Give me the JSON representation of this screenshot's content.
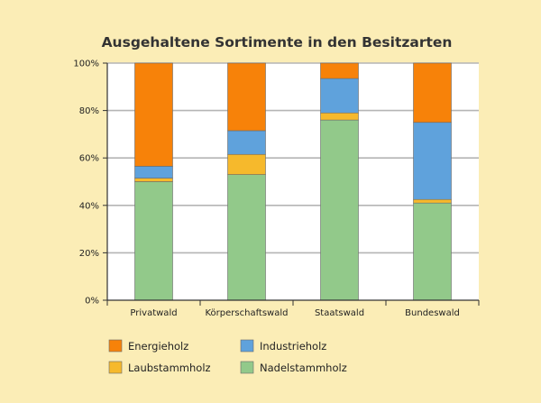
{
  "chart_data": {
    "type": "bar",
    "stacked": true,
    "title": "Ausgehaltene Sortimente in den Besitzarten",
    "xlabel": "",
    "ylabel": "",
    "ylim": [
      0,
      100
    ],
    "y_ticks": [
      "0%",
      "20%",
      "40%",
      "60%",
      "80%",
      "100%"
    ],
    "categories": [
      "Privatwald",
      "Körperschaftswald",
      "Staatswald",
      "Bundeswald"
    ],
    "series": [
      {
        "name": "Nadelstammholz",
        "color": "#92c98a",
        "values": [
          50,
          53,
          76,
          41
        ]
      },
      {
        "name": "Laubstammholz",
        "color": "#f6b92c",
        "values": [
          1.5,
          8.5,
          3,
          1.5
        ]
      },
      {
        "name": "Industrieholz",
        "color": "#5fa2dc",
        "values": [
          5,
          10,
          14.5,
          32.5
        ]
      },
      {
        "name": "Energieholz",
        "color": "#f78209",
        "values": [
          43.5,
          28.5,
          6.5,
          25
        ]
      }
    ],
    "legend": {
      "placement": "bottom",
      "entries": [
        "Energieholz",
        "Industrieholz",
        "Laubstammholz",
        "Nadelstammholz"
      ]
    },
    "grid": true
  }
}
